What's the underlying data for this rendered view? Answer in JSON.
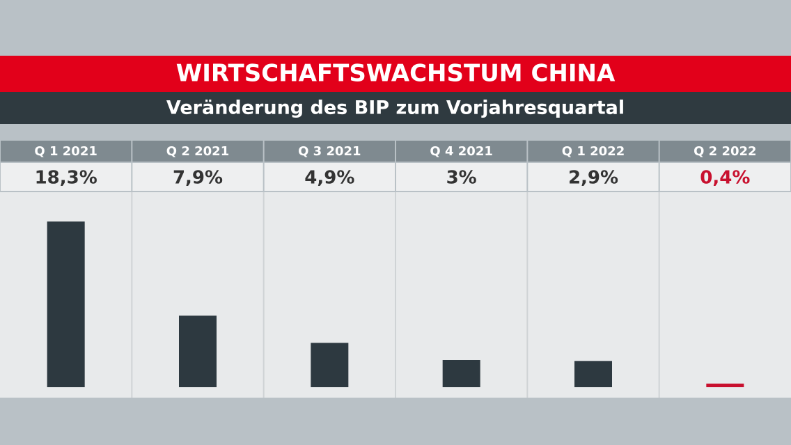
{
  "chart_data": {
    "type": "bar",
    "title": "WIRTSCHAFTSWACHSTUM CHINA",
    "subtitle": "Veränderung des BIP zum Vorjahresquartal",
    "categories": [
      "Q 1 2021",
      "Q 2 2021",
      "Q 3 2021",
      "Q 4 2021",
      "Q 1 2022",
      "Q 2 2022"
    ],
    "values": [
      18.3,
      7.9,
      4.9,
      3,
      2.9,
      0.4
    ],
    "value_labels": [
      "18,3%",
      "7,9%",
      "4,9%",
      "3%",
      "2,9%",
      "0,4%"
    ],
    "colors": [
      "#2d3940",
      "#2d3940",
      "#2d3940",
      "#2d3940",
      "#2d3940",
      "#c8102e"
    ],
    "ylim": [
      0,
      20
    ]
  }
}
